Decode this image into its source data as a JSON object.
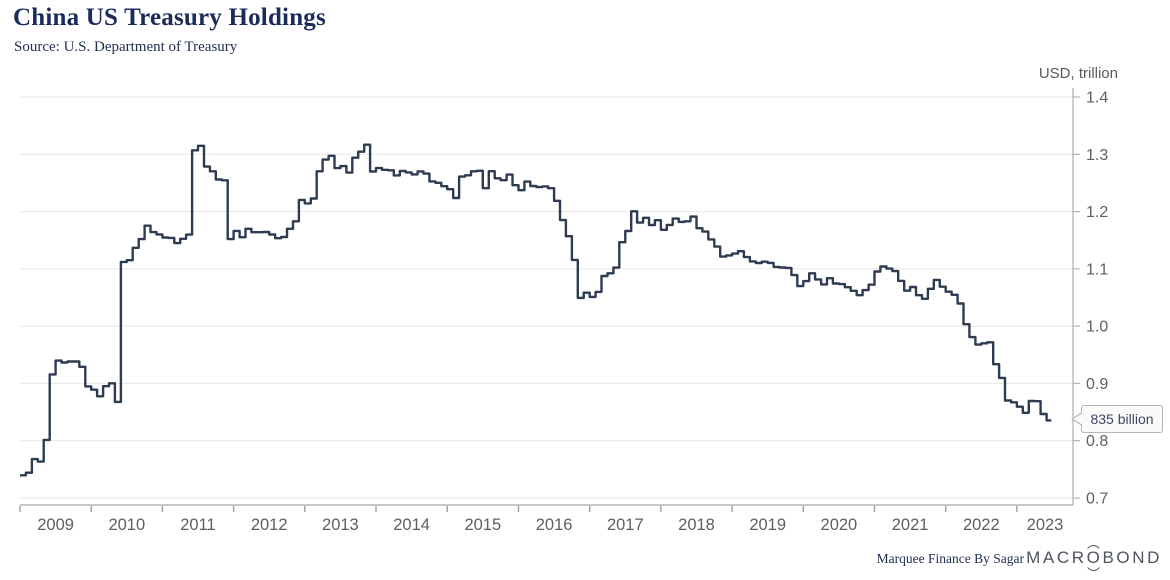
{
  "header": {
    "title": "China US Treasury Holdings",
    "source": "Source: U.S. Department of Treasury"
  },
  "axis": {
    "unit_label": "USD, trillion"
  },
  "annotation": {
    "last_value_label": "835 billion"
  },
  "footer": {
    "credit": "Marquee Finance By Sagar",
    "brand": "MACROBOND",
    "brand_pre": "MACR",
    "brand_o": "O",
    "brand_post": "BOND"
  },
  "colors": {
    "line": "#2e3c52",
    "title": "#1b2c5a",
    "grid": "#e7e7e7",
    "axis": "#b3b3b3",
    "tick": "#9a9a9a",
    "tick_text": "#5f5f5f",
    "tooltip_border": "#b5b5b5",
    "tooltip_bg": "#fafafa",
    "tooltip_text": "#3d4962"
  },
  "chart_data": {
    "type": "line",
    "step": true,
    "title": "China US Treasury Holdings",
    "source": "U.S. Department of Treasury",
    "xlabel": "",
    "ylabel": "USD, trillion",
    "ylim": [
      0.7,
      1.4
    ],
    "y_ticks": [
      0.7,
      0.8,
      0.9,
      1.0,
      1.1,
      1.2,
      1.3,
      1.4
    ],
    "x_tick_years": [
      2009,
      2010,
      2011,
      2012,
      2013,
      2014,
      2015,
      2016,
      2017,
      2018,
      2019,
      2020,
      2021,
      2022,
      2023
    ],
    "grid": true,
    "legend": "none",
    "frequency": "monthly",
    "start": "2009-01",
    "end": "2023-06",
    "last_value_billion": 835,
    "series": [
      {
        "name": "China US Treasury Holdings",
        "unit": "USD billions",
        "values_billion": [
          739.6,
          744.2,
          767.9,
          763.5,
          801.5,
          915.8,
          939.9,
          936.5,
          938.3,
          938.3,
          929.0,
          894.8,
          889.0,
          877.5,
          895.2,
          900.2,
          867.7,
          1112.1,
          1115.1,
          1136.8,
          1151.9,
          1175.3,
          1164.1,
          1160.1,
          1154.7,
          1154.1,
          1144.9,
          1152.5,
          1159.8,
          1307.0,
          1314.9,
          1278.5,
          1270.3,
          1256.0,
          1254.6,
          1151.9,
          1166.2,
          1155.2,
          1169.9,
          1164.0,
          1164.0,
          1164.3,
          1160.0,
          1153.6,
          1155.6,
          1169.9,
          1183.1,
          1220.4,
          1214.2,
          1222.9,
          1270.3,
          1290.8,
          1297.3,
          1275.8,
          1279.3,
          1268.1,
          1294.1,
          1304.5,
          1316.7,
          1270.0,
          1275.9,
          1272.9,
          1272.1,
          1263.2,
          1270.9,
          1268.4,
          1264.9,
          1270.1,
          1266.3,
          1252.7,
          1250.3,
          1244.3,
          1239.1,
          1223.7,
          1261.0,
          1263.4,
          1270.3,
          1271.2,
          1240.8,
          1270.5,
          1258.0,
          1254.8,
          1264.5,
          1246.1,
          1237.3,
          1252.3,
          1244.6,
          1242.8,
          1244.0,
          1240.8,
          1218.8,
          1185.1,
          1157.0,
          1115.7,
          1049.3,
          1058.4,
          1051.1,
          1059.7,
          1087.6,
          1092.2,
          1102.2,
          1146.5,
          1166.0,
          1200.5,
          1180.8,
          1189.2,
          1176.6,
          1184.9,
          1168.2,
          1176.7,
          1187.7,
          1181.9,
          1183.1,
          1191.2,
          1171.0,
          1165.1,
          1151.4,
          1138.9,
          1121.4,
          1123.5,
          1126.7,
          1130.9,
          1120.5,
          1113.0,
          1110.2,
          1112.5,
          1110.4,
          1103.5,
          1102.4,
          1101.7,
          1089.1,
          1069.9,
          1078.6,
          1092.3,
          1081.6,
          1072.8,
          1083.7,
          1074.4,
          1073.4,
          1068.0,
          1061.7,
          1054.0,
          1063.0,
          1072.3,
          1095.4,
          1104.2,
          1100.4,
          1096.1,
          1078.9,
          1061.9,
          1068.4,
          1054.1,
          1047.7,
          1065.1,
          1080.8,
          1068.8,
          1060.1,
          1054.8,
          1039.6,
          1003.4,
          980.8,
          967.8,
          970.0,
          971.8,
          933.6,
          909.6,
          870.2,
          867.1,
          859.4,
          848.8,
          869.3,
          868.9,
          846.7,
          835.4
        ]
      }
    ]
  }
}
